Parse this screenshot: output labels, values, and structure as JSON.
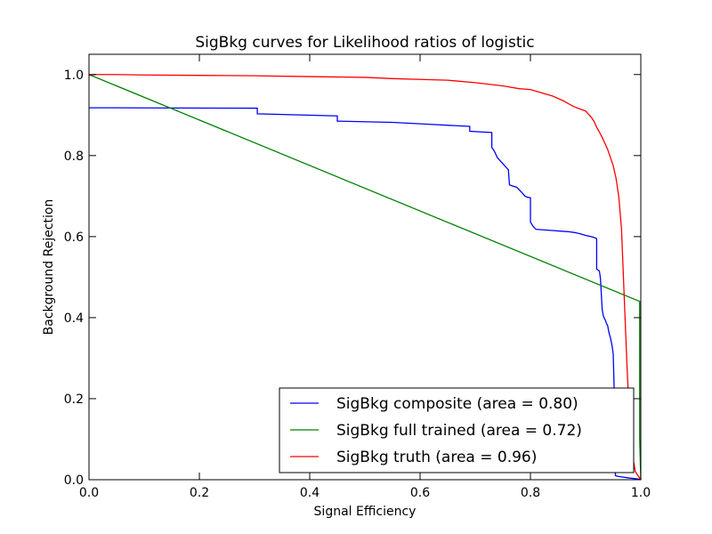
{
  "chart_data": {
    "type": "line",
    "title": "SigBkg curves for Likelihood ratios of logistic",
    "xlabel": "Signal Efficiency",
    "ylabel": "Background Rejection",
    "xlim": [
      0.0,
      1.0
    ],
    "ylim": [
      0.0,
      1.05
    ],
    "xticks": [
      "0.0",
      "0.2",
      "0.4",
      "0.6",
      "0.8",
      "1.0"
    ],
    "yticks": [
      "0.0",
      "0.2",
      "0.4",
      "0.6",
      "0.8",
      "1.0"
    ],
    "grid": false,
    "legend_position": "bottom-right",
    "series": [
      {
        "name": "SigBkg composite (area = 0.80)",
        "color": "#0000ff",
        "x": [
          0.0,
          0.305,
          0.305,
          0.45,
          0.45,
          0.55,
          0.62,
          0.69,
          0.69,
          0.73,
          0.73,
          0.735,
          0.74,
          0.75,
          0.76,
          0.762,
          0.765,
          0.775,
          0.78,
          0.785,
          0.79,
          0.795,
          0.8,
          0.8,
          0.805,
          0.81,
          0.82,
          0.84,
          0.86,
          0.87,
          0.88,
          0.89,
          0.9,
          0.91,
          0.915,
          0.92,
          0.92,
          0.925,
          0.926,
          0.927,
          0.928,
          0.93,
          0.932,
          0.934,
          0.936,
          0.938,
          0.94,
          0.942,
          0.945,
          0.948,
          0.95,
          0.951,
          0.952,
          0.953,
          0.954,
          0.96,
          0.98,
          1.0
        ],
        "y": [
          0.918,
          0.917,
          0.903,
          0.898,
          0.885,
          0.882,
          0.877,
          0.872,
          0.86,
          0.857,
          0.82,
          0.81,
          0.795,
          0.78,
          0.765,
          0.728,
          0.726,
          0.722,
          0.715,
          0.708,
          0.7,
          0.697,
          0.696,
          0.636,
          0.625,
          0.618,
          0.617,
          0.615,
          0.613,
          0.612,
          0.61,
          0.607,
          0.603,
          0.6,
          0.598,
          0.595,
          0.52,
          0.515,
          0.505,
          0.495,
          0.47,
          0.42,
          0.405,
          0.398,
          0.393,
          0.385,
          0.38,
          0.365,
          0.35,
          0.33,
          0.31,
          0.26,
          0.21,
          0.16,
          0.01,
          0.008,
          0.004,
          0.001
        ]
      },
      {
        "name": "SigBkg full trained (area = 0.72)",
        "color": "#008000",
        "x": [
          0.0,
          0.998,
          0.998,
          1.0
        ],
        "y": [
          1.0,
          0.44,
          0.1,
          0.0
        ]
      },
      {
        "name": "SigBkg truth (area = 0.96)",
        "color": "#ff0000",
        "x": [
          0.0,
          0.01,
          0.05,
          0.1,
          0.2,
          0.3,
          0.4,
          0.5,
          0.55,
          0.6,
          0.65,
          0.7,
          0.75,
          0.78,
          0.8,
          0.82,
          0.84,
          0.86,
          0.87,
          0.88,
          0.89,
          0.9,
          0.91,
          0.915,
          0.92,
          0.925,
          0.93,
          0.935,
          0.94,
          0.945,
          0.95,
          0.955,
          0.96,
          0.965,
          0.97,
          0.975,
          0.98,
          0.985,
          0.99,
          1.0
        ],
        "y": [
          0.998,
          1.0,
          1.0,
          0.999,
          0.998,
          0.997,
          0.995,
          0.993,
          0.99,
          0.988,
          0.986,
          0.98,
          0.972,
          0.965,
          0.963,
          0.955,
          0.947,
          0.935,
          0.927,
          0.92,
          0.915,
          0.91,
          0.895,
          0.885,
          0.87,
          0.858,
          0.845,
          0.83,
          0.815,
          0.795,
          0.775,
          0.745,
          0.7,
          0.62,
          0.45,
          0.28,
          0.14,
          0.06,
          0.02,
          0.0
        ]
      }
    ]
  }
}
